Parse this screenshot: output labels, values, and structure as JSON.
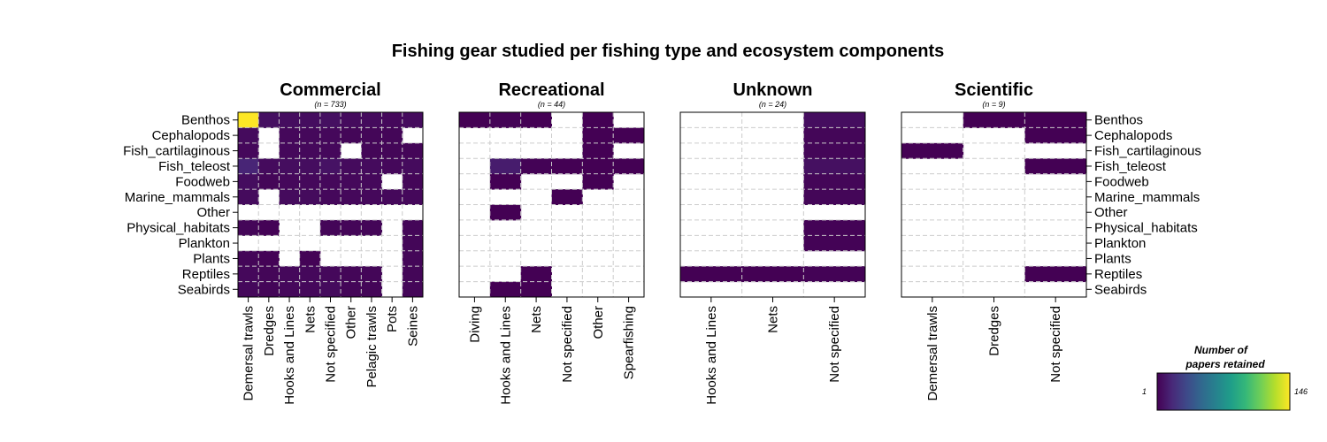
{
  "chart_data": {
    "type": "heatmap",
    "title": "Fishing gear studied per fishing type and ecosystem components",
    "rows": [
      "Benthos",
      "Cephalopods",
      "Fish_cartilaginous",
      "Fish_teleost",
      "Foodweb",
      "Marine_mammals",
      "Other",
      "Physical_habitats",
      "Plankton",
      "Plants",
      "Reptiles",
      "Seabirds"
    ],
    "panels": [
      {
        "name": "Commercial",
        "n_label": "(n = 733)",
        "columns": [
          "Demersal trawls",
          "Dredges",
          "Hooks and Lines",
          "Nets",
          "Not specified",
          "Other",
          "Pelagic trawls",
          "Pots",
          "Seines"
        ],
        "values": [
          [
            146,
            7,
            6,
            6,
            7,
            5,
            5,
            4,
            5
          ],
          [
            5,
            null,
            4,
            4,
            4,
            3,
            3,
            3,
            null
          ],
          [
            4,
            null,
            4,
            4,
            4,
            null,
            3,
            3,
            3
          ],
          [
            16,
            5,
            6,
            6,
            8,
            5,
            5,
            4,
            5
          ],
          [
            6,
            3,
            4,
            4,
            4,
            4,
            4,
            null,
            3
          ],
          [
            5,
            null,
            5,
            5,
            4,
            4,
            4,
            4,
            4
          ],
          [
            null,
            null,
            null,
            null,
            null,
            null,
            null,
            null,
            null
          ],
          [
            3,
            2,
            null,
            null,
            3,
            3,
            3,
            null,
            3
          ],
          [
            null,
            null,
            null,
            null,
            null,
            null,
            null,
            null,
            3
          ],
          [
            3,
            2,
            null,
            2,
            null,
            null,
            null,
            null,
            3
          ],
          [
            4,
            3,
            4,
            4,
            4,
            3,
            3,
            null,
            3
          ],
          [
            4,
            3,
            4,
            4,
            5,
            3,
            3,
            null,
            3
          ]
        ]
      },
      {
        "name": "Recreational",
        "n_label": "(n = 44)",
        "columns": [
          "Diving",
          "Hooks and Lines",
          "Nets",
          "Not specified",
          "Other",
          "Spearfishing"
        ],
        "values": [
          [
            1,
            2,
            1,
            null,
            1,
            null
          ],
          [
            null,
            null,
            null,
            null,
            1,
            1
          ],
          [
            null,
            null,
            null,
            null,
            1,
            null
          ],
          [
            null,
            12,
            2,
            1,
            1,
            1
          ],
          [
            null,
            1,
            null,
            null,
            1,
            null
          ],
          [
            null,
            null,
            null,
            1,
            null,
            null
          ],
          [
            null,
            1,
            null,
            null,
            null,
            null
          ],
          [
            null,
            null,
            null,
            null,
            null,
            null
          ],
          [
            null,
            null,
            null,
            null,
            null,
            null
          ],
          [
            null,
            null,
            null,
            null,
            null,
            null
          ],
          [
            null,
            null,
            1,
            null,
            null,
            null
          ],
          [
            null,
            1,
            1,
            null,
            null,
            null
          ]
        ]
      },
      {
        "name": "Unknown",
        "n_label": "(n = 24)",
        "columns": [
          "Hooks and Lines",
          "Nets",
          "Not specified"
        ],
        "values": [
          [
            null,
            null,
            6
          ],
          [
            null,
            null,
            3
          ],
          [
            null,
            null,
            3
          ],
          [
            null,
            null,
            7
          ],
          [
            null,
            null,
            3
          ],
          [
            null,
            null,
            3
          ],
          [
            null,
            null,
            null
          ],
          [
            null,
            null,
            2
          ],
          [
            null,
            null,
            2
          ],
          [
            null,
            null,
            null
          ],
          [
            1,
            1,
            2
          ],
          [
            null,
            null,
            null
          ]
        ]
      },
      {
        "name": "Scientific",
        "n_label": "(n = 9)",
        "columns": [
          "Demersal trawls",
          "Dredges",
          "Not specified"
        ],
        "values": [
          [
            null,
            1,
            1
          ],
          [
            null,
            null,
            1
          ],
          [
            1,
            null,
            null
          ],
          [
            null,
            null,
            1
          ],
          [
            null,
            null,
            null
          ],
          [
            null,
            null,
            null
          ],
          [
            null,
            null,
            null
          ],
          [
            null,
            null,
            null
          ],
          [
            null,
            null,
            null
          ],
          [
            null,
            null,
            null
          ],
          [
            null,
            null,
            1
          ],
          [
            null,
            null,
            null
          ]
        ]
      }
    ],
    "legend": {
      "title_line1": "Number of",
      "title_line2": "papers retained",
      "min_label": "1",
      "max_label": "146",
      "min": 1,
      "max": 146,
      "placement": "bottom-right"
    },
    "colorscale": "viridis",
    "grid": true
  },
  "colors": {
    "viridis_stops": [
      "#440154",
      "#482878",
      "#3e4989",
      "#31688e",
      "#26828e",
      "#1f9e89",
      "#35b779",
      "#6ece58",
      "#b5de2b",
      "#fde725"
    ],
    "grid_line": "#cccccc",
    "frame": "#000000"
  }
}
